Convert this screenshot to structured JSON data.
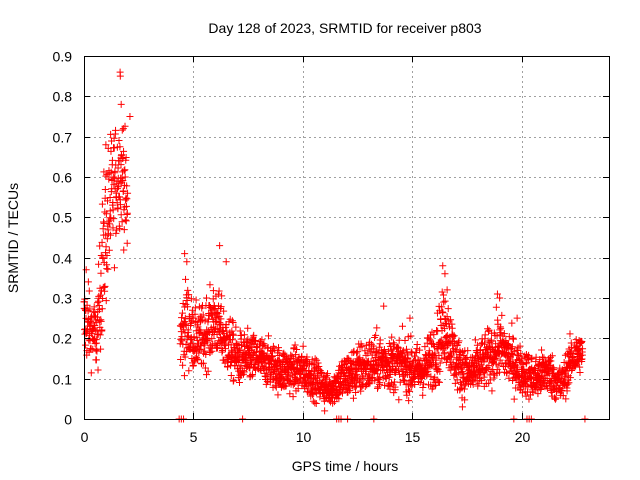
{
  "chart_data": {
    "type": "scatter",
    "title": "Day 128 of 2023, SRMTID for receiver p803",
    "xlabel": "GPS time / hours",
    "ylabel": "SRMTID / TECUs",
    "xlim": [
      0,
      24
    ],
    "ylim": [
      0,
      0.9
    ],
    "x_ticks": [
      0,
      5,
      10,
      15,
      20
    ],
    "x_tick_labels": [
      "0",
      "5",
      "10",
      "15",
      "20"
    ],
    "y_ticks": [
      0,
      0.1,
      0.2,
      0.3,
      0.4,
      0.5,
      0.6,
      0.7,
      0.8,
      0.9
    ],
    "y_tick_labels": [
      "0",
      "0.1",
      "0.2",
      "0.3",
      "0.4",
      "0.5",
      "0.6",
      "0.7",
      "0.8",
      "0.9"
    ],
    "grid": true,
    "marker": "+",
    "color": "#ff0000",
    "series": [
      {
        "name": "SRMTID p803",
        "profile": [
          [
            0.0,
            0.24,
            0.09
          ],
          [
            0.3,
            0.22,
            0.07
          ],
          [
            0.6,
            0.2,
            0.08
          ],
          [
            0.8,
            0.36,
            0.15
          ],
          [
            1.0,
            0.47,
            0.17
          ],
          [
            1.3,
            0.55,
            0.15
          ],
          [
            1.6,
            0.62,
            0.12
          ],
          [
            1.8,
            0.6,
            0.12
          ],
          [
            2.0,
            0.5,
            0.12
          ],
          [
            4.4,
            0.2,
            0.08
          ],
          [
            4.7,
            0.24,
            0.1
          ],
          [
            5.0,
            0.2,
            0.07
          ],
          [
            5.5,
            0.2,
            0.07
          ],
          [
            6.0,
            0.25,
            0.08
          ],
          [
            6.4,
            0.2,
            0.07
          ],
          [
            7.0,
            0.15,
            0.06
          ],
          [
            8.0,
            0.15,
            0.05
          ],
          [
            9.0,
            0.12,
            0.05
          ],
          [
            10.0,
            0.12,
            0.05
          ],
          [
            10.8,
            0.09,
            0.04
          ],
          [
            11.2,
            0.07,
            0.03
          ],
          [
            11.8,
            0.1,
            0.05
          ],
          [
            12.5,
            0.12,
            0.06
          ],
          [
            13.3,
            0.14,
            0.06
          ],
          [
            14.0,
            0.14,
            0.06
          ],
          [
            14.8,
            0.13,
            0.06
          ],
          [
            15.5,
            0.12,
            0.05
          ],
          [
            16.2,
            0.18,
            0.08
          ],
          [
            16.5,
            0.24,
            0.09
          ],
          [
            17.0,
            0.14,
            0.06
          ],
          [
            17.6,
            0.11,
            0.05
          ],
          [
            18.3,
            0.14,
            0.06
          ],
          [
            19.0,
            0.18,
            0.07
          ],
          [
            19.6,
            0.14,
            0.06
          ],
          [
            20.0,
            0.12,
            0.05
          ],
          [
            20.6,
            0.1,
            0.05
          ],
          [
            21.2,
            0.12,
            0.05
          ],
          [
            21.8,
            0.08,
            0.04
          ],
          [
            22.3,
            0.15,
            0.05
          ],
          [
            22.8,
            0.17,
            0.04
          ]
        ],
        "peaks": [
          [
            1.65,
            0.86
          ],
          [
            1.66,
            0.85
          ],
          [
            1.7,
            0.78
          ],
          [
            1.0,
            0.68
          ],
          [
            1.8,
            0.72
          ],
          [
            2.1,
            0.75
          ],
          [
            0.1,
            0.37
          ],
          [
            0.2,
            0.34
          ],
          [
            4.6,
            0.41
          ],
          [
            4.7,
            0.39
          ],
          [
            6.2,
            0.43
          ],
          [
            6.5,
            0.39
          ],
          [
            5.6,
            0.3
          ],
          [
            16.4,
            0.38
          ],
          [
            16.5,
            0.36
          ],
          [
            16.6,
            0.32
          ],
          [
            18.9,
            0.31
          ],
          [
            19.0,
            0.3
          ],
          [
            13.7,
            0.28
          ],
          [
            14.9,
            0.25
          ],
          [
            19.8,
            0.25
          ],
          [
            11.0,
            0.02
          ],
          [
            17.3,
            0.03
          ],
          [
            22.9,
            0.0
          ]
        ],
        "floor_points": [
          4.35,
          4.45,
          4.55,
          7.25,
          11.55,
          11.65,
          11.75,
          12.05,
          13.25,
          19.65,
          20.25,
          20.35,
          20.45
        ]
      }
    ]
  }
}
